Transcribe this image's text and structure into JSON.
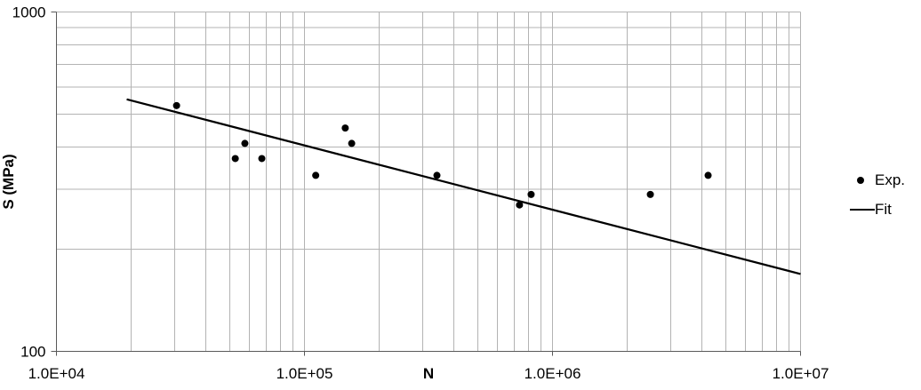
{
  "chart_data": {
    "type": "scatter",
    "title": "",
    "xlabel": "N",
    "ylabel": "S (MPa)",
    "x_scale": "log",
    "y_scale": "log",
    "xlim": [
      10000,
      10000000
    ],
    "ylim": [
      100,
      1000
    ],
    "x_ticks": [
      {
        "value": 10000,
        "label": "1.0E+04"
      },
      {
        "value": 100000,
        "label": "1.0E+05"
      },
      {
        "value": 1000000,
        "label": "1.0E+06"
      },
      {
        "value": 10000000,
        "label": "1.0E+07"
      }
    ],
    "y_ticks": [
      {
        "value": 100,
        "label": "100"
      },
      {
        "value": 1000,
        "label": "1000"
      }
    ],
    "grid": {
      "show": true,
      "x_log_minor": true,
      "y_major_step": 100
    },
    "legend_position": "right",
    "series": [
      {
        "name": "Exp.",
        "type": "scatter",
        "marker": "filled-circle",
        "color": "#000000",
        "points": [
          {
            "N": 30500,
            "S": 530
          },
          {
            "N": 52600,
            "S": 370
          },
          {
            "N": 57500,
            "S": 410
          },
          {
            "N": 67300,
            "S": 370
          },
          {
            "N": 111000,
            "S": 330
          },
          {
            "N": 146000,
            "S": 455
          },
          {
            "N": 155000,
            "S": 410
          },
          {
            "N": 342000,
            "S": 330
          },
          {
            "N": 736000,
            "S": 270
          },
          {
            "N": 820000,
            "S": 290
          },
          {
            "N": 2480000,
            "S": 290
          },
          {
            "N": 4240000,
            "S": 330
          }
        ]
      },
      {
        "name": "Fit",
        "type": "line",
        "color": "#000000",
        "points": [
          {
            "N": 19200,
            "S": 553
          },
          {
            "N": 10000000,
            "S": 169
          }
        ]
      }
    ],
    "style": {
      "gridline_color": "#b3b3b3",
      "axis_color": "#595959",
      "text_color": "#000000",
      "background": "#ffffff"
    }
  }
}
